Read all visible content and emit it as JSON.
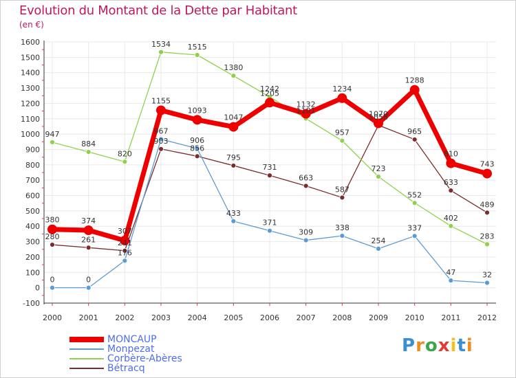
{
  "title": "Evolution du Montant de la Dette par Habitant",
  "subtitle": "(en €)",
  "colors": {
    "title": "#c2185b",
    "legend_text": "#4d6df0",
    "grid": "#e8e8e8",
    "tick_mark": "#e53935"
  },
  "chart_data": {
    "type": "line",
    "x": [
      "2000",
      "2001",
      "2002",
      "2003",
      "2004",
      "2005",
      "2006",
      "2007",
      "2008",
      "2009",
      "2010",
      "2011",
      "2012"
    ],
    "ylim": [
      -100,
      1600
    ],
    "yticks": [
      "-100",
      "0",
      "100",
      "200",
      "300",
      "400",
      "500",
      "600",
      "700",
      "800",
      "900",
      "1000",
      "1100",
      "1200",
      "1300",
      "1400",
      "1500",
      "1600"
    ],
    "grid": true,
    "legend_position": "bottom-left",
    "series": [
      {
        "name": "MONCAUP",
        "color": "#ee0000",
        "values": [
          380,
          374,
          307,
          1155,
          1093,
          1047,
          1205,
          1132,
          1234,
          1070,
          1288,
          810,
          743
        ],
        "labels": [
          "380",
          "374",
          "307",
          "1155",
          "1093",
          "1047",
          "1205",
          "1132",
          "1234",
          "1070",
          "1288",
          "810",
          "743"
        ]
      },
      {
        "name": "Monpezat",
        "color": "#5b9bd5",
        "values": [
          0,
          0,
          176,
          967,
          906,
          433,
          371,
          309,
          338,
          254,
          337,
          47,
          32
        ],
        "labels": [
          "0",
          "0",
          "176",
          "967",
          "906",
          "433",
          "371",
          "309",
          "338",
          "254",
          "337",
          "47",
          "32"
        ]
      },
      {
        "name": "Corbère-Abères",
        "color": "#8fd14f",
        "values": [
          947,
          884,
          820,
          1534,
          1515,
          1380,
          1242,
          1101,
          957,
          723,
          552,
          402,
          283
        ],
        "labels": [
          "947",
          "884",
          "820",
          "1534",
          "1515",
          "1380",
          "1242",
          "1101",
          "957",
          "723",
          "552",
          "402",
          "283"
        ]
      },
      {
        "name": "Bétracq",
        "color": "#7b2c2c",
        "values": [
          280,
          261,
          241,
          903,
          856,
          795,
          731,
          663,
          587,
          1058,
          965,
          633,
          489
        ],
        "labels": [
          "280",
          "261",
          "241",
          "903",
          "856",
          "795",
          "731",
          "663",
          "587",
          "1058",
          "965",
          "633",
          "489"
        ]
      }
    ]
  },
  "logo": {
    "letters": [
      "P",
      "r",
      "o",
      "x",
      "i",
      "t",
      "i"
    ],
    "colors": [
      "#3a8fd0",
      "#f08c1c",
      "#3aa84a",
      "#e53935",
      "#f2c21b",
      "#3a8fd0",
      "#f08c1c"
    ]
  }
}
